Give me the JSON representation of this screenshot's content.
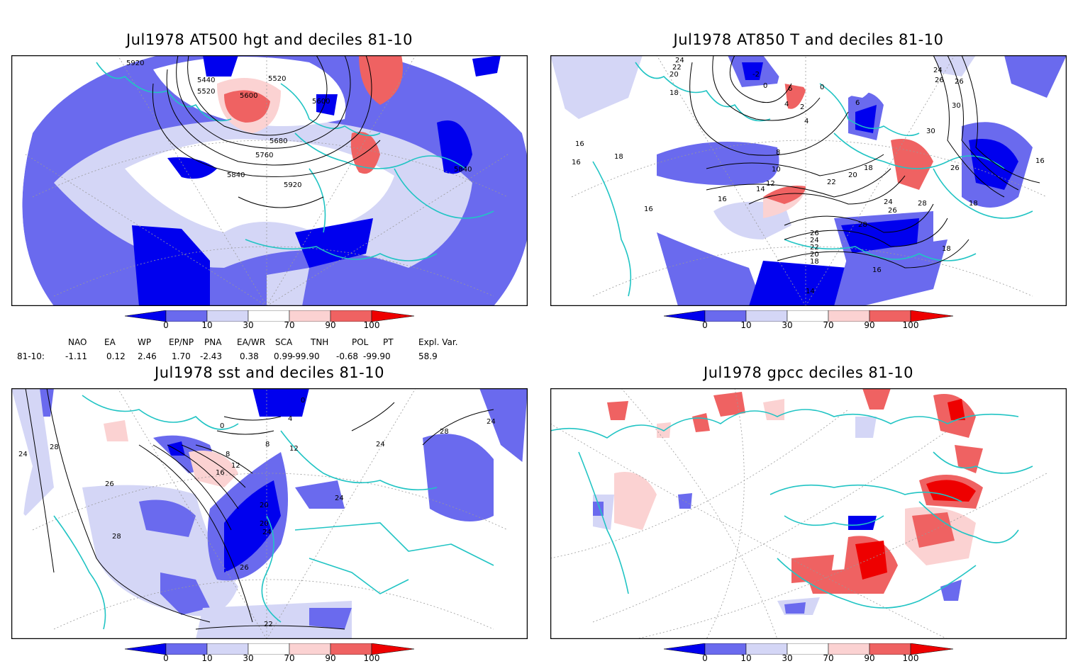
{
  "colors": {
    "dark_blue": "#0000ee",
    "mid_blue": "#6a6aee",
    "light_blue": "#d4d6f6",
    "light_red": "#fbd2d2",
    "mid_red": "#ef6262",
    "dark_red": "#ee0000",
    "coast": "#21c4c4",
    "contour": "#000000",
    "grid": "#999999"
  },
  "colorbar": {
    "tick_labels": [
      "0",
      "10",
      "30",
      "70",
      "90",
      "100"
    ]
  },
  "panels": [
    {
      "id": "at500",
      "title": "Jul1978 AT500 hgt and deciles 81-10",
      "contour_labels": [
        "5920",
        "5440",
        "5520",
        "5520",
        "5600",
        "5600",
        "5680",
        "5760",
        "5840",
        "5840",
        "5920"
      ]
    },
    {
      "id": "at850",
      "title": "Jul1978 AT850 T and deciles 81-10",
      "contour_labels": [
        "24",
        "22",
        "20",
        "-2",
        "0",
        "6",
        "4",
        "2",
        "0",
        "4",
        "6",
        "18",
        "16",
        "16",
        "18",
        "8",
        "10",
        "12",
        "14",
        "16",
        "20",
        "22",
        "18",
        "24",
        "26",
        "28",
        "28",
        "26",
        "24",
        "22",
        "20",
        "18",
        "16",
        "14",
        "26",
        "30",
        "30",
        "26",
        "16",
        "18",
        "18",
        "16",
        "24",
        "26"
      ]
    },
    {
      "id": "sst",
      "title": "Jul1978 sst and deciles 81-10",
      "contour_labels": [
        "24",
        "28",
        "26",
        "12",
        "8",
        "16",
        "12",
        "8",
        "4",
        "0",
        "20",
        "20",
        "24",
        "26",
        "24",
        "28",
        "28",
        "24",
        "24",
        "22",
        "0"
      ]
    },
    {
      "id": "gpcc",
      "title": "Jul1978 gpcc deciles 81-10",
      "contour_labels": []
    }
  ],
  "indices": {
    "headers": [
      "NAO",
      "EA",
      "WP",
      "EP/NP",
      "PNA",
      "EA/WR",
      "SCA",
      "TNH",
      "POL",
      "PT",
      "Expl. Var."
    ],
    "row_label": "81-10:",
    "values": [
      "-1.11",
      "0.12",
      "2.46",
      "1.70",
      "-2.43",
      "0.38",
      "0.99",
      "-99.90",
      "-0.68",
      "-99.90",
      "58.9"
    ]
  }
}
